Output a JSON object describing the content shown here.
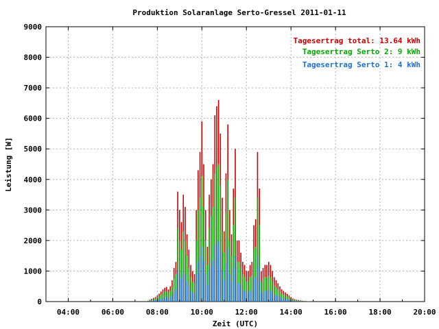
{
  "chart_data": {
    "type": "bar",
    "title": "Produktion Solaranlage Serto-Gressel 2011-01-11",
    "xlabel": "Zeit (UTC)",
    "ylabel": "Leistung [W]",
    "xlim": [
      "03:00",
      "20:00"
    ],
    "ylim": [
      0,
      9000
    ],
    "grid": true,
    "legend_position": "top-right",
    "x_ticks": [
      "04:00",
      "06:00",
      "08:00",
      "10:00",
      "12:00",
      "14:00",
      "16:00",
      "18:00",
      "20:00"
    ],
    "y_ticks": [
      "0",
      "1000",
      "2000",
      "3000",
      "4000",
      "5000",
      "6000",
      "7000",
      "8000",
      "9000"
    ],
    "legend": [
      {
        "label": "Tagesertrag total: 13.64 kWh",
        "color": "#cc0000"
      },
      {
        "label": "Tagesertrag Serto 2: 9 kWh",
        "color": "#00aa00"
      },
      {
        "label": "Tagesertrag Serto 1: 4 kWh",
        "color": "#1f6fd0"
      }
    ],
    "x": [
      "07:35",
      "07:40",
      "07:45",
      "07:50",
      "07:55",
      "08:00",
      "08:05",
      "08:10",
      "08:15",
      "08:20",
      "08:25",
      "08:30",
      "08:35",
      "08:40",
      "08:45",
      "08:50",
      "08:55",
      "09:00",
      "09:05",
      "09:10",
      "09:15",
      "09:20",
      "09:25",
      "09:30",
      "09:35",
      "09:40",
      "09:45",
      "09:50",
      "09:55",
      "10:00",
      "10:05",
      "10:10",
      "10:15",
      "10:20",
      "10:25",
      "10:30",
      "10:35",
      "10:40",
      "10:45",
      "10:50",
      "10:55",
      "11:00",
      "11:05",
      "11:10",
      "11:15",
      "11:20",
      "11:25",
      "11:30",
      "11:35",
      "11:40",
      "11:45",
      "11:50",
      "11:55",
      "12:00",
      "12:05",
      "12:10",
      "12:15",
      "12:20",
      "12:25",
      "12:30",
      "12:35",
      "12:40",
      "12:45",
      "12:50",
      "12:55",
      "13:00",
      "13:05",
      "13:10",
      "13:15",
      "13:20",
      "13:25",
      "13:30",
      "13:35",
      "13:40",
      "13:45",
      "13:50",
      "13:55",
      "14:00",
      "14:05",
      "14:10",
      "14:15",
      "14:20",
      "14:25",
      "14:30",
      "14:35",
      "14:40",
      "14:45",
      "14:50",
      "14:55",
      "15:00",
      "15:05",
      "15:10"
    ],
    "series": [
      {
        "name": "Tagesertrag total: 13.64 kWh",
        "color": "#cc0000",
        "values": [
          30,
          60,
          90,
          120,
          150,
          200,
          260,
          330,
          400,
          450,
          480,
          400,
          500,
          700,
          1100,
          1300,
          3600,
          3000,
          2600,
          3500,
          3100,
          2200,
          1700,
          1200,
          1000,
          900,
          3000,
          4300,
          4900,
          5900,
          4500,
          3000,
          1800,
          3500,
          4000,
          4500,
          6100,
          6400,
          6600,
          5500,
          3400,
          2300,
          4200,
          5800,
          3000,
          2200,
          3700,
          5000,
          2000,
          2000,
          1600,
          1300,
          1200,
          1000,
          1000,
          1200,
          1300,
          2500,
          2700,
          4900,
          3700,
          1000,
          1100,
          1200,
          1200,
          1300,
          1200,
          1000,
          800,
          700,
          600,
          500,
          400,
          350,
          300,
          250,
          200,
          150,
          100,
          80,
          60,
          50,
          40,
          30,
          20,
          20,
          10,
          10,
          5,
          5,
          0,
          0
        ]
      },
      {
        "name": "Tagesertrag Serto 2: 9 kWh",
        "color": "#00aa00",
        "values": [
          20,
          40,
          60,
          80,
          100,
          140,
          180,
          230,
          280,
          320,
          340,
          280,
          350,
          480,
          750,
          900,
          2400,
          2000,
          1700,
          2300,
          2000,
          1500,
          1100,
          800,
          650,
          600,
          2000,
          3000,
          3400,
          4100,
          3100,
          2000,
          1200,
          2400,
          2800,
          3100,
          4200,
          4400,
          4500,
          3800,
          2300,
          1600,
          2900,
          4000,
          2000,
          1500,
          2500,
          3400,
          1300,
          1300,
          1100,
          900,
          800,
          650,
          650,
          800,
          850,
          1700,
          1800,
          3400,
          2500,
          650,
          750,
          800,
          800,
          850,
          800,
          650,
          520,
          460,
          400,
          330,
          260,
          230,
          200,
          170,
          130,
          100,
          65,
          50,
          40,
          30,
          25,
          20,
          13,
          12,
          6,
          6,
          3,
          3,
          0,
          0
        ]
      },
      {
        "name": "Tagesertrag Serto 1: 4 kWh",
        "color": "#1f6fd0",
        "values": [
          10,
          20,
          30,
          40,
          50,
          60,
          80,
          100,
          120,
          140,
          150,
          120,
          150,
          210,
          330,
          400,
          1050,
          900,
          750,
          1000,
          900,
          650,
          500,
          350,
          300,
          270,
          900,
          1300,
          1500,
          1800,
          1350,
          900,
          550,
          1050,
          1200,
          1350,
          1850,
          1900,
          2000,
          1650,
          1000,
          700,
          1250,
          1750,
          900,
          650,
          1100,
          1500,
          600,
          600,
          500,
          400,
          350,
          300,
          300,
          350,
          400,
          750,
          800,
          1500,
          1100,
          300,
          330,
          350,
          350,
          380,
          350,
          300,
          230,
          200,
          180,
          150,
          120,
          100,
          90,
          75,
          60,
          45,
          30,
          25,
          20,
          15,
          12,
          9,
          6,
          6,
          3,
          3,
          2,
          2,
          0,
          0
        ]
      }
    ]
  }
}
